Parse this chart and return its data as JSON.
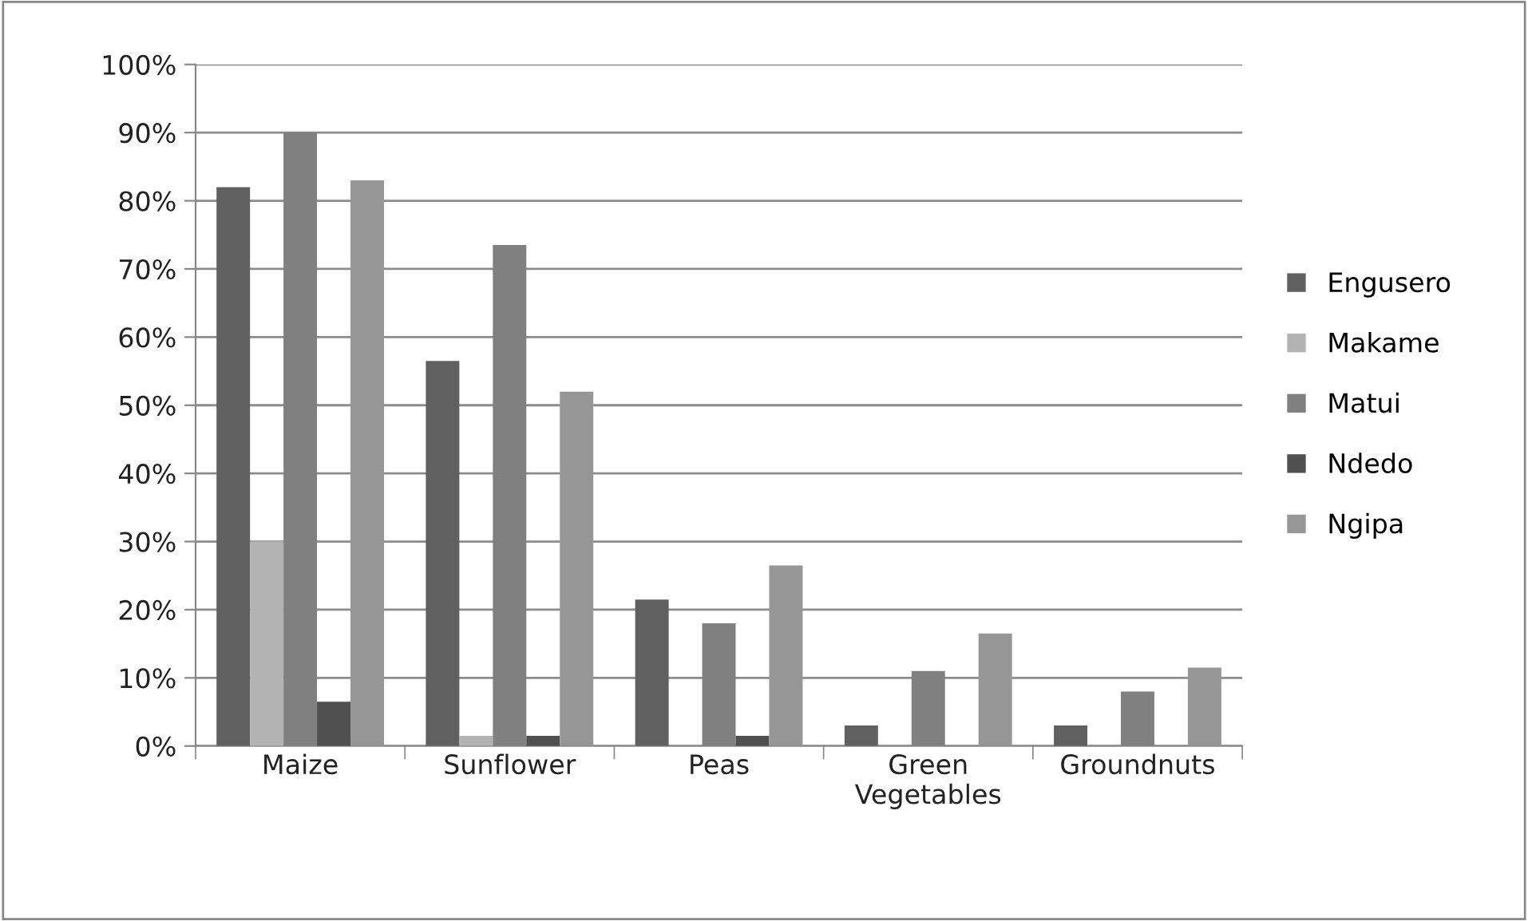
{
  "chart_data": {
    "type": "bar",
    "categories": [
      "Maize",
      "Sunflower",
      "Peas",
      "Green\nVegetables",
      "Groundnuts"
    ],
    "series": [
      {
        "name": "Engusero",
        "color": "#606060",
        "values": [
          82,
          56.5,
          21.5,
          3,
          3
        ]
      },
      {
        "name": "Makame",
        "color": "#b3b3b3",
        "values": [
          30,
          1.5,
          0,
          0,
          0
        ]
      },
      {
        "name": "Matui",
        "color": "#808080",
        "values": [
          90,
          73.5,
          18,
          11,
          8
        ]
      },
      {
        "name": "Ndedo",
        "color": "#505050",
        "values": [
          6.5,
          1.5,
          1.5,
          0,
          0
        ]
      },
      {
        "name": "Ngipa",
        "color": "#969696",
        "values": [
          83,
          52,
          26.5,
          16.5,
          11.5
        ]
      }
    ],
    "ylim": [
      0,
      100
    ],
    "yticks": [
      {
        "value": 0,
        "label": "0%"
      },
      {
        "value": 10,
        "label": "10%"
      },
      {
        "value": 20,
        "label": "20%"
      },
      {
        "value": 30,
        "label": "30%"
      },
      {
        "value": 40,
        "label": "40%"
      },
      {
        "value": 50,
        "label": "50%"
      },
      {
        "value": 60,
        "label": "60%"
      },
      {
        "value": 70,
        "label": "70%"
      },
      {
        "value": 80,
        "label": "80%"
      },
      {
        "value": 90,
        "label": "90%"
      },
      {
        "value": 100,
        "label": "100%"
      }
    ],
    "grid": "y",
    "legend": "right"
  }
}
